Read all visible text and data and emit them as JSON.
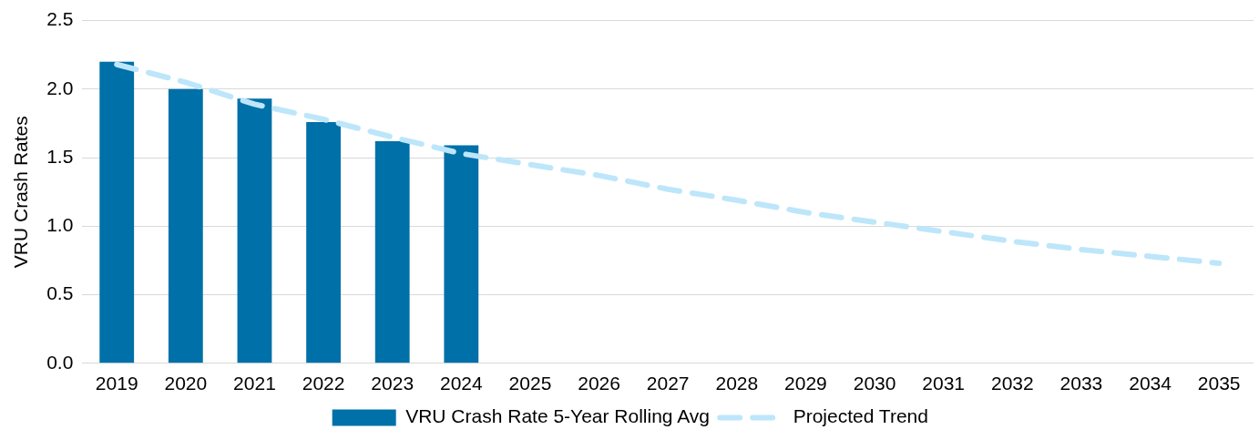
{
  "chart_data": {
    "type": "bar",
    "ylabel": "VRU Crash Rates",
    "categories": [
      "2019",
      "2020",
      "2021",
      "2022",
      "2023",
      "2024",
      "2025",
      "2026",
      "2027",
      "2028",
      "2029",
      "2030",
      "2031",
      "2032",
      "2033",
      "2034",
      "2035"
    ],
    "series": [
      {
        "name": "VRU Crash Rate 5-Year Rolling Avg",
        "color": "#0070a8",
        "values": [
          2.2,
          2.0,
          1.93,
          1.76,
          1.62,
          1.59,
          null,
          null,
          null,
          null,
          null,
          null,
          null,
          null,
          null,
          null,
          null
        ]
      },
      {
        "name": "Projected Trend",
        "type": "line",
        "color": "#bde6fa",
        "line_style": "dashed",
        "marker": "none",
        "values": [
          2.18,
          2.05,
          1.89,
          1.78,
          1.65,
          1.53,
          1.45,
          1.37,
          1.27,
          1.19,
          1.1,
          1.03,
          0.96,
          0.89,
          0.83,
          0.78,
          0.73
        ]
      }
    ],
    "ylim": [
      0,
      2.5
    ],
    "yticks": [
      {
        "value": 0,
        "label": "0.0"
      },
      {
        "value": 0.5,
        "label": "0.5"
      },
      {
        "value": 1,
        "label": "1.0"
      },
      {
        "value": 1.5,
        "label": "1.5"
      },
      {
        "value": 2,
        "label": "2.0"
      },
      {
        "value": 2.5,
        "label": "2.5"
      }
    ],
    "grid": "y",
    "legend": "bottom"
  }
}
